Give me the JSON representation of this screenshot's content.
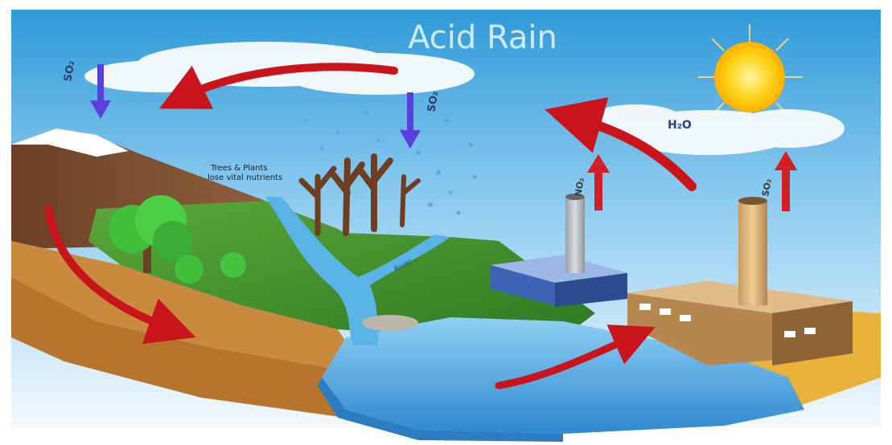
{
  "title": "Acid Rain",
  "labels": {
    "so2_left": "SO₂",
    "so2_center": "SO₂",
    "no2_small": "NO₂",
    "so2_right": "SO₂",
    "h2o": "H₂O",
    "note_line1": "Trees & Plants",
    "note_line2": "lose vital nutrients",
    "river": "River"
  },
  "colors": {
    "sky_top": "#2f9ad8",
    "sky_bottom": "#e8f4fb",
    "arrow_red": "#c8141a",
    "arrow_blue": "#5a3fe0",
    "grass": "#3f8f2a",
    "water": "#4aa6e0",
    "soil": "#8a5a33",
    "sun": "#ffd21a"
  },
  "icons": [
    "sun-icon",
    "cloud-icon",
    "factory-icon",
    "smokestack-icon",
    "tree-icon",
    "dead-tree-icon",
    "mountain-icon"
  ]
}
